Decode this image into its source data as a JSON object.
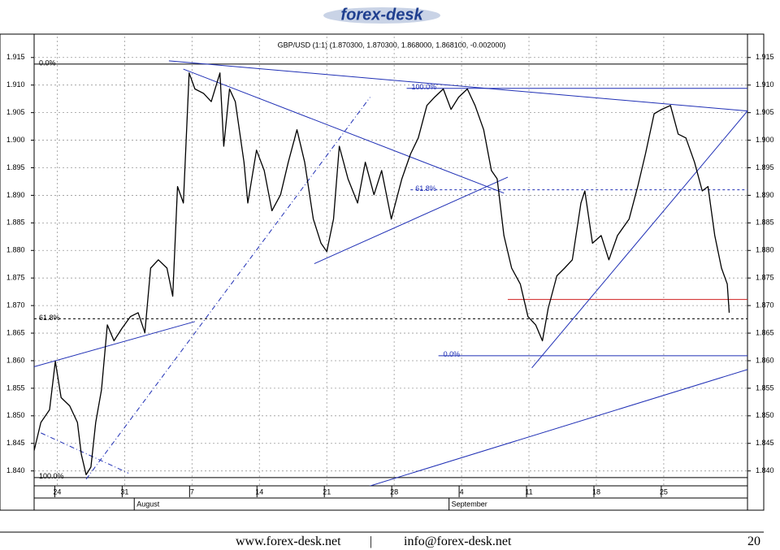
{
  "header": {
    "logo": "forex-desk"
  },
  "chart_data": {
    "type": "line",
    "title": "GBP/USD (1:1) (1.870300, 1.870300, 1.868000, 1.868100, -0.002000)",
    "color": "#000000",
    "x": [
      -2.4,
      -1.7,
      -0.8,
      -0.2,
      0.4,
      1.3,
      2.1,
      2.5,
      3.0,
      3.5,
      4.0,
      4.6,
      5.2,
      5.9,
      6.7,
      7.6,
      8.4,
      9.1,
      9.7,
      10.5,
      11.4,
      12.0,
      12.5,
      13.1,
      13.7,
      14.3,
      15.2,
      16.0,
      16.9,
      17.3,
      17.9,
      18.5,
      19.4,
      19.8,
      20.7,
      21.5,
      22.3,
      23.2,
      24.0,
      24.9,
      25.7,
      26.6,
      27.4,
      28.0,
      28.7,
      29.3,
      30.2,
      31.2,
      32.0,
      32.9,
      33.7,
      34.7,
      35.8,
      36.7,
      37.5,
      38.4,
      39.2,
      40.1,
      40.9,
      41.7,
      42.6,
      43.4,
      44.3,
      45.1,
      45.7,
      46.4,
      47.2,
      48.1,
      48.9,
      49.7,
      50.4,
      51.0,
      51.9,
      52.7,
      53.5,
      54.4,
      54.8,
      55.6,
      56.5,
      57.3,
      58.2,
      59.4,
      60.3,
      61.1,
      62.0,
      62.8,
      63.7,
      64.5,
      65.3,
      66.2,
      67.0,
      67.6,
      68.3,
      69.0,
      69.6,
      69.8
    ],
    "values": [
      1.8437,
      1.8488,
      1.8511,
      1.8599,
      1.8533,
      1.8518,
      1.8488,
      1.843,
      1.8393,
      1.8407,
      1.8488,
      1.8547,
      1.8665,
      1.8636,
      1.8658,
      1.868,
      1.8687,
      1.8651,
      1.8768,
      1.8783,
      1.8768,
      1.8717,
      1.8916,
      1.8886,
      1.9122,
      1.9093,
      1.9085,
      1.907,
      1.9122,
      1.8989,
      1.9093,
      1.907,
      1.896,
      1.8886,
      1.8982,
      1.8945,
      1.8872,
      1.8901,
      1.896,
      1.9019,
      1.896,
      1.8857,
      1.8813,
      1.8798,
      1.8857,
      1.8989,
      1.893,
      1.8886,
      1.896,
      1.8901,
      1.8945,
      1.8857,
      1.893,
      1.8975,
      1.9004,
      1.9063,
      1.9078,
      1.9093,
      1.9056,
      1.9078,
      1.9093,
      1.9063,
      1.9019,
      1.8945,
      1.893,
      1.8827,
      1.8768,
      1.8739,
      1.868,
      1.8665,
      1.8636,
      1.8695,
      1.8754,
      1.8768,
      1.8783,
      1.8886,
      1.8908,
      1.8813,
      1.8827,
      1.8783,
      1.8827,
      1.8857,
      1.8916,
      1.8975,
      1.9048,
      1.9056,
      1.9063,
      1.9011,
      1.9004,
      1.896,
      1.8908,
      1.8916,
      1.8827,
      1.8768,
      1.8739,
      1.8687
    ],
    "xlim": [
      -2.4,
      71.7
    ],
    "ylim": [
      1.8373,
      1.9188
    ],
    "xticks": [
      {
        "value": 0,
        "label": "24"
      },
      {
        "value": 7,
        "label": "31"
      },
      {
        "value": 14,
        "label": "7"
      },
      {
        "value": 21,
        "label": "14"
      },
      {
        "value": 28,
        "label": "21"
      },
      {
        "value": 35,
        "label": "28"
      },
      {
        "value": 42,
        "label": "4"
      },
      {
        "value": 49,
        "label": "11"
      },
      {
        "value": 56,
        "label": "18"
      },
      {
        "value": 63,
        "label": "25"
      }
    ],
    "months": [
      {
        "label": "August",
        "x": 8
      },
      {
        "label": "September",
        "x": 40.7
      }
    ],
    "yticks": [
      {
        "value": 1.84,
        "label": "1.840"
      },
      1.845,
      {
        "value": 1.85,
        "label": "1.850"
      },
      1.855,
      {
        "value": 1.86,
        "label": "1.860"
      },
      1.865,
      {
        "value": 1.87,
        "label": "1.870"
      },
      1.875,
      {
        "value": 1.88,
        "label": "1.880"
      },
      1.885,
      {
        "value": 1.89,
        "label": "1.890"
      },
      1.895,
      {
        "value": 1.9,
        "label": "1.900"
      },
      1.905,
      {
        "value": 1.91,
        "label": "1.910"
      },
      1.915
    ],
    "grid": true,
    "levels": [
      {
        "label": "0.0%",
        "value": 1.9138,
        "x": [
          -2.4,
          71.7
        ],
        "color": "#000000",
        "dashed": false
      },
      {
        "label": "61.8%",
        "value": 1.8676,
        "x": [
          -2.4,
          71.7
        ],
        "color": "#000000",
        "dashed": true
      },
      {
        "label": "100.0%",
        "value": 1.8388,
        "x": [
          -2.4,
          71.7
        ],
        "color": "#000000",
        "dashed": false
      },
      {
        "label": "100.0%",
        "value": 1.9094,
        "x": [
          36.3,
          71.7
        ],
        "color": "#1f2fb5",
        "dashed": false
      },
      {
        "label": "61.8%",
        "value": 1.891,
        "x": [
          36.7,
          71.7
        ],
        "color": "#1f2fb5",
        "dashed": true
      },
      {
        "label": "0.0%",
        "value": 1.8609,
        "x": [
          39.6,
          71.7
        ],
        "color": "#1f2fb5",
        "dashed": false
      },
      {
        "value": 1.8711,
        "x": [
          46.8,
          71.7
        ],
        "color": "#d02020",
        "dashed": false
      }
    ],
    "trendlines": [
      {
        "x": [
          11.6,
          71.7
        ],
        "y": [
          1.9144,
          1.9053
        ],
        "color": "#1f2fb5",
        "dash": "solid"
      },
      {
        "x": [
          13.1,
          46.4
        ],
        "y": [
          1.9129,
          1.8904
        ],
        "color": "#1f2fb5",
        "dash": "solid"
      },
      {
        "x": [
          26.7,
          46.8
        ],
        "y": [
          1.8776,
          1.8933
        ],
        "color": "#1f2fb5",
        "dash": "solid"
      },
      {
        "x": [
          -2.4,
          14.3
        ],
        "y": [
          1.8589,
          1.8671
        ],
        "color": "#1f2fb5",
        "dash": "solid"
      },
      {
        "x": [
          3.0,
          32.5
        ],
        "y": [
          1.8385,
          1.9078
        ],
        "color": "#1f2fb5",
        "dash": "dashdot"
      },
      {
        "x": [
          -1.7,
          7.4
        ],
        "y": [
          1.8469,
          1.8396
        ],
        "color": "#1f2fb5",
        "dash": "dashdot"
      },
      {
        "x": [
          49.3,
          71.7
        ],
        "y": [
          1.8587,
          1.9053
        ],
        "color": "#1f2fb5",
        "dash": "solid"
      },
      {
        "x": [
          31.6,
          71.7
        ],
        "y": [
          1.8368,
          1.8584
        ],
        "color": "#1f2fb5",
        "dash": "solid"
      }
    ]
  },
  "footer": {
    "site": "www.forex-desk.net",
    "separator": "|",
    "email": "info@forex-desk.net",
    "page": "20"
  }
}
